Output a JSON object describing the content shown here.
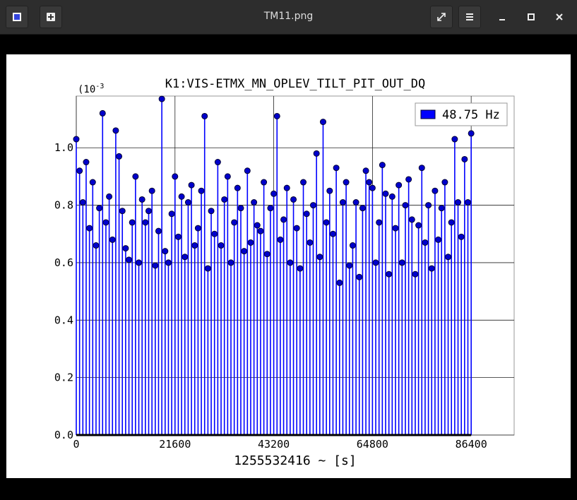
{
  "window": {
    "title": "TM11.png"
  },
  "chart_data": {
    "type": "stem",
    "title": "K1:VIS-ETMX_MN_OPLEV_TILT_PIT_OUT_DQ",
    "xlabel": "1255532416 ~ [s]",
    "y_multiplier": "(10",
    "y_multiplier_exp": "-3",
    "x": [
      0,
      720,
      1440,
      2160,
      2880,
      3600,
      4320,
      5040,
      5760,
      6480,
      7200,
      7920,
      8640,
      9360,
      10080,
      10800,
      11520,
      12240,
      12960,
      13680,
      14400,
      15120,
      15840,
      16560,
      17280,
      18000,
      18720,
      19440,
      20160,
      20880,
      21600,
      22320,
      23040,
      23760,
      24480,
      25200,
      25920,
      26640,
      27360,
      28080,
      28800,
      29520,
      30240,
      30960,
      31680,
      32400,
      33120,
      33840,
      34560,
      35280,
      36000,
      36720,
      37440,
      38160,
      38880,
      39600,
      40320,
      41040,
      41760,
      42480,
      43200,
      43920,
      44640,
      45360,
      46080,
      46800,
      47520,
      48240,
      48960,
      49680,
      50400,
      51120,
      51840,
      52560,
      53280,
      54000,
      54720,
      55440,
      56160,
      56880,
      57600,
      58320,
      59040,
      59760,
      60480,
      61200,
      61920,
      62640,
      63360,
      64080,
      64800,
      65520,
      66240,
      66960,
      67680,
      68400,
      69120,
      69840,
      70560,
      71280,
      72000,
      72720,
      73440,
      74160,
      74880,
      75600,
      76320,
      77040,
      77760,
      78480,
      79200,
      79920,
      80640,
      81360,
      82080,
      82800,
      83520,
      84240,
      84960,
      85680,
      86400
    ],
    "series": [
      {
        "name": "48.75 Hz",
        "color": "#0000ff",
        "values": [
          1.03,
          0.92,
          0.81,
          0.95,
          0.72,
          0.88,
          0.66,
          0.79,
          1.12,
          0.74,
          0.83,
          0.68,
          1.06,
          0.97,
          0.78,
          0.65,
          0.61,
          0.74,
          0.9,
          0.6,
          0.82,
          0.74,
          0.78,
          0.85,
          0.59,
          0.71,
          1.17,
          0.64,
          0.6,
          0.77,
          0.9,
          0.69,
          0.83,
          0.62,
          0.81,
          0.87,
          0.66,
          0.72,
          0.85,
          1.11,
          0.58,
          0.78,
          0.7,
          0.95,
          0.66,
          0.82,
          0.9,
          0.6,
          0.74,
          0.86,
          0.79,
          0.64,
          0.92,
          0.67,
          0.81,
          0.73,
          0.71,
          0.88,
          0.63,
          0.79,
          0.84,
          1.11,
          0.68,
          0.75,
          0.86,
          0.6,
          0.82,
          0.72,
          0.58,
          0.88,
          0.77,
          0.67,
          0.8,
          0.98,
          0.62,
          1.09,
          0.74,
          0.85,
          0.7,
          0.93,
          0.53,
          0.81,
          0.88,
          0.59,
          0.66,
          0.81,
          0.55,
          0.79,
          0.92,
          0.88,
          0.86,
          0.6,
          0.74,
          0.94,
          0.84,
          0.56,
          0.83,
          0.72,
          0.87,
          0.6,
          0.8,
          0.89,
          0.75,
          0.56,
          0.73,
          0.93,
          0.67,
          0.8,
          0.58,
          0.85,
          0.68,
          0.79,
          0.88,
          0.62,
          0.74,
          1.03,
          0.81,
          0.69,
          0.96,
          0.81,
          1.05
        ]
      }
    ],
    "xlim": [
      0,
      95800
    ],
    "xticks": [
      0,
      21600,
      43200,
      64800,
      86400
    ],
    "ylim": [
      0,
      1.18
    ],
    "yticks": [
      {
        "value": 0,
        "label": "0.0"
      },
      0.2,
      0.4,
      0.6,
      0.8,
      {
        "value": 1,
        "label": "1.0"
      }
    ],
    "grid": true,
    "legend": "upper right"
  }
}
